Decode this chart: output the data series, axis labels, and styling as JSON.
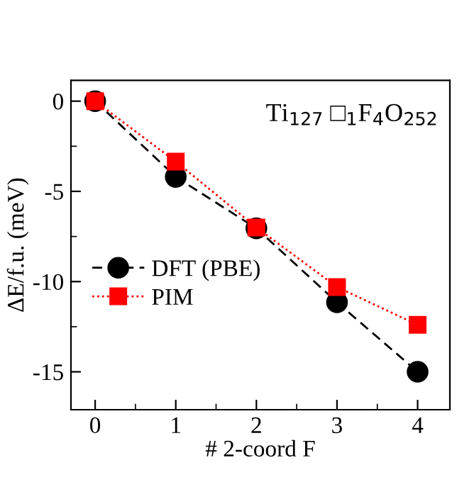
{
  "chart_data": {
    "type": "line",
    "xlabel": "# 2-coord F",
    "ylabel": "ΔE/f.u. (meV)",
    "annotations": [
      "Ti$_{127}$ □$_{1}$F$_{4}$O$_{252}$"
    ],
    "x": [
      0,
      1,
      2,
      3,
      4
    ],
    "series": [
      {
        "name": "DFT (PBE)",
        "color": "#000000",
        "marker": "circle",
        "line_style": "dashed",
        "values": [
          0,
          -4.2,
          -7.05,
          -11.15,
          -15.0
        ]
      },
      {
        "name": "PIM",
        "color": "#ff0000",
        "marker": "square",
        "line_style": "dotted",
        "values": [
          0,
          -3.35,
          -7.0,
          -10.3,
          -12.4
        ]
      }
    ],
    "xlim": [
      -0.3,
      4.4
    ],
    "ylim": [
      -17.1,
      1.15
    ],
    "xticks": [
      0,
      1,
      2,
      3,
      4
    ],
    "yticks": [
      0,
      -5,
      -10,
      -15
    ],
    "grid": false,
    "legend": "left"
  }
}
